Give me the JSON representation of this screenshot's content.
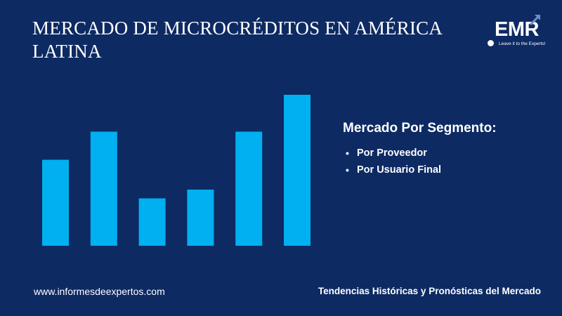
{
  "header": {
    "title": "MERCADO DE MICROCRÉDITOS EN AMÉRICA LATINA"
  },
  "logo": {
    "text": "EMR",
    "tagline": "Leave it to the Experts!"
  },
  "segment": {
    "heading": "Mercado Por Segmento:",
    "items": [
      "Por Proveedor",
      "Por Usuario Final"
    ]
  },
  "footer": {
    "website": "www.informesdeexpertos.com",
    "tagline": "Tendencias Históricas y Pronósticas del Mercado"
  },
  "colors": {
    "background": "#0d2a63",
    "bar": "#00b0f0"
  },
  "chart_data": {
    "type": "bar",
    "categories": [
      "",
      "",
      "",
      "",
      "",
      ""
    ],
    "values": [
      4.9,
      6.5,
      2.7,
      3.2,
      6.5,
      8.6
    ],
    "ylim": [
      0,
      10
    ],
    "grid": false,
    "legend": "none"
  }
}
